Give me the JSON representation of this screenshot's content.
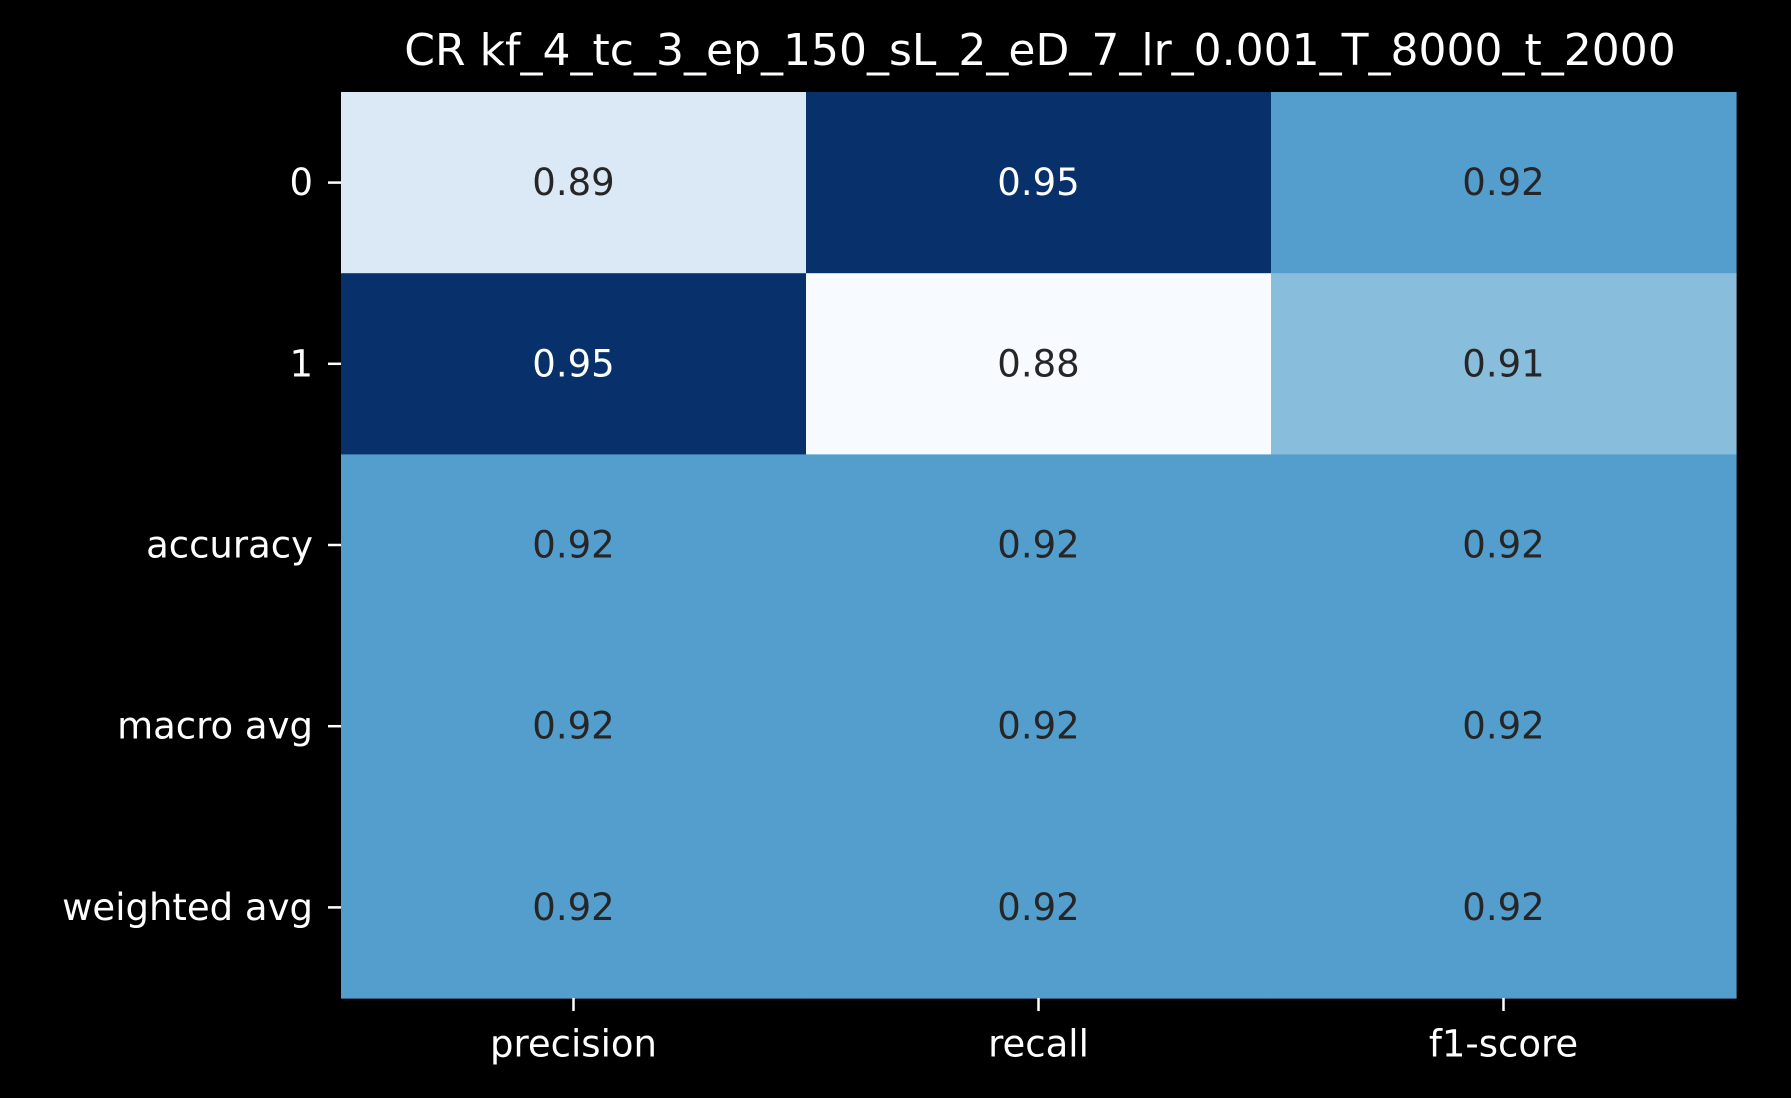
{
  "chart_data": {
    "type": "heatmap",
    "title": "CR kf_4_tc_3_ep_150_sL_2_eD_7_lr_0.001_T_8000_t_2000",
    "xlabel": "",
    "ylabel": "",
    "x_categories": [
      "precision",
      "recall",
      "f1-score"
    ],
    "y_categories": [
      "0",
      "1",
      "accuracy",
      "macro avg",
      "weighted avg"
    ],
    "values": [
      [
        0.89,
        0.95,
        0.92
      ],
      [
        0.95,
        0.88,
        0.91
      ],
      [
        0.92,
        0.92,
        0.92
      ],
      [
        0.92,
        0.92,
        0.92
      ],
      [
        0.92,
        0.92,
        0.92
      ]
    ],
    "colormap": "Blues",
    "colorbar": false,
    "grid": false,
    "colors": {
      "background": "#000000",
      "text_light": "#ffffff",
      "text_dark": "#262626"
    }
  }
}
